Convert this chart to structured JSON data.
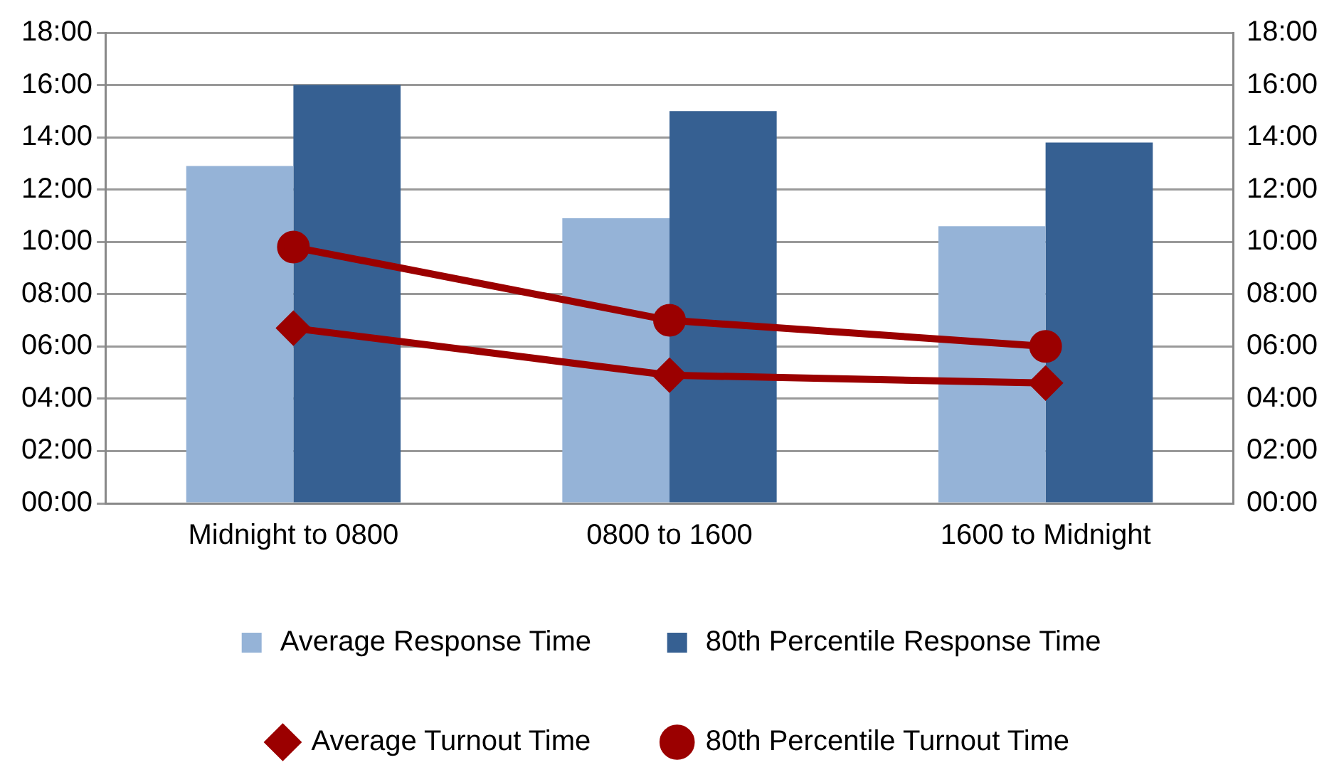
{
  "chart_data": {
    "type": "bar",
    "categories": [
      "Midnight to 0800",
      "0800 to 1600",
      "1600 to Midnight"
    ],
    "series": [
      {
        "name": "Average Response Time",
        "color": "#95b3d7",
        "values": [
          12.9,
          10.9,
          10.6
        ]
      },
      {
        "name": "80th Percentile Response Time",
        "color": "#366092",
        "values": [
          16.0,
          15.0,
          13.8
        ]
      },
      {
        "name": "Average Turnout Time",
        "type": "line",
        "marker": "diamond",
        "color": "#9b0000",
        "values": [
          6.7,
          4.9,
          4.6
        ]
      },
      {
        "name": "80th Percentile Turnout Time",
        "type": "line",
        "marker": "circle",
        "color": "#9b0000",
        "values": [
          9.8,
          7.0,
          6.0
        ]
      }
    ],
    "ylim": [
      0,
      18
    ],
    "yticks": [
      {
        "value": 0,
        "label": "00:00"
      },
      {
        "value": 2,
        "label": "02:00"
      },
      {
        "value": 4,
        "label": "04:00"
      },
      {
        "value": 6,
        "label": "06:00"
      },
      {
        "value": 8,
        "label": "08:00"
      },
      {
        "value": 10,
        "label": "10:00"
      },
      {
        "value": 12,
        "label": "12:00"
      },
      {
        "value": 14,
        "label": "14:00"
      },
      {
        "value": 16,
        "label": "16:00"
      },
      {
        "value": 18,
        "label": "18:00"
      }
    ],
    "y2lim": [
      0,
      18
    ],
    "y2ticks": [
      {
        "value": 0,
        "label": "00:00"
      },
      {
        "value": 2,
        "label": "02:00"
      },
      {
        "value": 4,
        "label": "04:00"
      },
      {
        "value": 6,
        "label": "06:00"
      },
      {
        "value": 8,
        "label": "08:00"
      },
      {
        "value": 10,
        "label": "10:00"
      },
      {
        "value": 12,
        "label": "12:00"
      },
      {
        "value": 14,
        "label": "14:00"
      },
      {
        "value": 16,
        "label": "16:00"
      },
      {
        "value": 18,
        "label": "18:00"
      }
    ],
    "grid": "y",
    "legend": "bottom",
    "line_style": "solid"
  }
}
